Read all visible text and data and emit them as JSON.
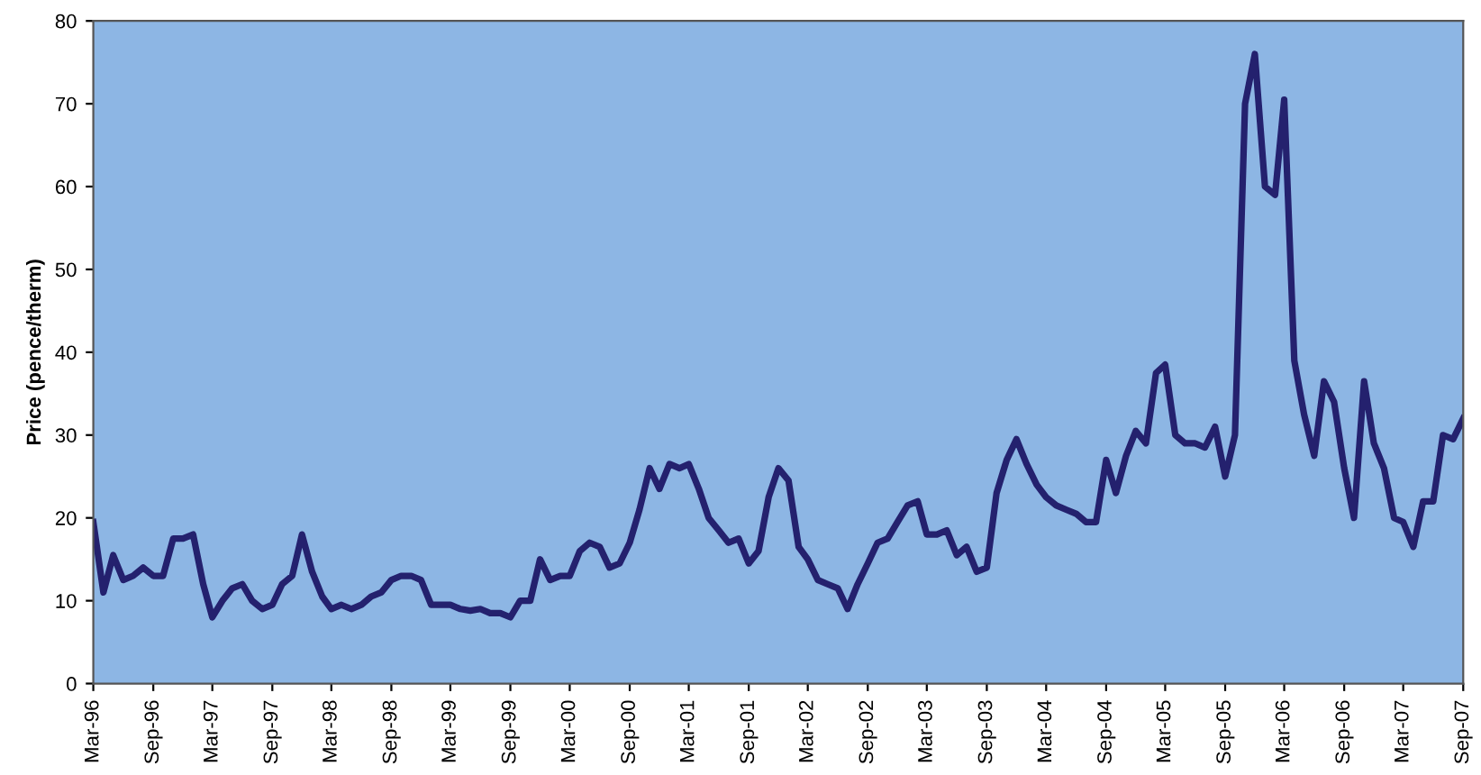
{
  "chart_data": {
    "type": "line",
    "ylabel": "Price (pence/therm)",
    "x": [
      "1996-03",
      "1996-04",
      "1996-05",
      "1996-06",
      "1996-07",
      "1996-08",
      "1996-09",
      "1996-10",
      "1996-11",
      "1996-12",
      "1997-01",
      "1997-02",
      "1997-03",
      "1997-04",
      "1997-05",
      "1997-06",
      "1997-07",
      "1997-08",
      "1997-09",
      "1997-10",
      "1997-11",
      "1997-12",
      "1998-01",
      "1998-02",
      "1998-03",
      "1998-04",
      "1998-05",
      "1998-06",
      "1998-07",
      "1998-08",
      "1998-09",
      "1998-10",
      "1998-11",
      "1998-12",
      "1999-01",
      "1999-02",
      "1999-03",
      "1999-04",
      "1999-05",
      "1999-06",
      "1999-07",
      "1999-08",
      "1999-09",
      "1999-10",
      "1999-11",
      "1999-12",
      "2000-01",
      "2000-02",
      "2000-03",
      "2000-04",
      "2000-05",
      "2000-06",
      "2000-07",
      "2000-08",
      "2000-09",
      "2000-10",
      "2000-11",
      "2000-12",
      "2001-01",
      "2001-02",
      "2001-03",
      "2001-04",
      "2001-05",
      "2001-06",
      "2001-07",
      "2001-08",
      "2001-09",
      "2001-10",
      "2001-11",
      "2001-12",
      "2002-01",
      "2002-02",
      "2002-03",
      "2002-04",
      "2002-05",
      "2002-06",
      "2002-07",
      "2002-08",
      "2002-09",
      "2002-10",
      "2002-11",
      "2002-12",
      "2003-01",
      "2003-02",
      "2003-03",
      "2003-04",
      "2003-05",
      "2003-06",
      "2003-07",
      "2003-08",
      "2003-09",
      "2003-10",
      "2003-11",
      "2003-12",
      "2004-01",
      "2004-02",
      "2004-03",
      "2004-04",
      "2004-05",
      "2004-06",
      "2004-07",
      "2004-08",
      "2004-09",
      "2004-10",
      "2004-11",
      "2004-12",
      "2005-01",
      "2005-02",
      "2005-03",
      "2005-04",
      "2005-05",
      "2005-06",
      "2005-07",
      "2005-08",
      "2005-09",
      "2005-10",
      "2005-11",
      "2005-12",
      "2006-01",
      "2006-02",
      "2006-03",
      "2006-04",
      "2006-05",
      "2006-06",
      "2006-07",
      "2006-08",
      "2006-09",
      "2006-10",
      "2006-11",
      "2006-12",
      "2007-01",
      "2007-02",
      "2007-03",
      "2007-04",
      "2007-05",
      "2007-06",
      "2007-07",
      "2007-08",
      "2007-09"
    ],
    "series": [
      {
        "color": "#24216e",
        "values": [
          19.5,
          11,
          15.5,
          12.5,
          13,
          14,
          13,
          13,
          17.5,
          17.5,
          18,
          12,
          8,
          10,
          11.5,
          12,
          10,
          9,
          9.5,
          12,
          13,
          18,
          13.5,
          10.5,
          9,
          9.5,
          9,
          9.5,
          10.5,
          11,
          12.5,
          13,
          13,
          12.5,
          9.5,
          9.5,
          9.5,
          9,
          8.8,
          9,
          8.5,
          8.5,
          8,
          10,
          10,
          15,
          12.5,
          13,
          13,
          16,
          17,
          16.5,
          14,
          14.5,
          17,
          21,
          26,
          23.5,
          26.5,
          26,
          26.5,
          23.5,
          20,
          18.5,
          17,
          17.5,
          14.5,
          16,
          22.5,
          26,
          24.5,
          16.5,
          15,
          12.5,
          12,
          11.5,
          9,
          12,
          14.5,
          17,
          17.5,
          19.5,
          21.5,
          22,
          18,
          18,
          18.5,
          15.5,
          16.5,
          13.5,
          14,
          23,
          27,
          29.5,
          26.5,
          24,
          22.5,
          21.5,
          21,
          20.5,
          19.5,
          19.5,
          27,
          23,
          27.5,
          30.5,
          29,
          37.5,
          38.5,
          30,
          29,
          29,
          28.5,
          31,
          25,
          30,
          70,
          76,
          60,
          59,
          70.5,
          39,
          32.5,
          27.5,
          36.5,
          34,
          26,
          20,
          36.5,
          29,
          26,
          20,
          19.5,
          16.5,
          22,
          22,
          30,
          29.5,
          32
        ]
      }
    ],
    "xlim": [
      "1996-03",
      "2007-09"
    ],
    "xticks": [
      {
        "value": "1996-03",
        "label": "Mar-96"
      },
      {
        "value": "1996-09",
        "label": "Sep-96"
      },
      {
        "value": "1997-03",
        "label": "Mar-97"
      },
      {
        "value": "1997-09",
        "label": "Sep-97"
      },
      {
        "value": "1998-03",
        "label": "Mar-98"
      },
      {
        "value": "1998-09",
        "label": "Sep-98"
      },
      {
        "value": "1999-03",
        "label": "Mar-99"
      },
      {
        "value": "1999-09",
        "label": "Sep-99"
      },
      {
        "value": "2000-03",
        "label": "Mar-00"
      },
      {
        "value": "2000-09",
        "label": "Sep-00"
      },
      {
        "value": "2001-03",
        "label": "Mar-01"
      },
      {
        "value": "2001-09",
        "label": "Sep-01"
      },
      {
        "value": "2002-03",
        "label": "Mar-02"
      },
      {
        "value": "2002-09",
        "label": "Sep-02"
      },
      {
        "value": "2003-03",
        "label": "Mar-03"
      },
      {
        "value": "2003-09",
        "label": "Sep-03"
      },
      {
        "value": "2004-03",
        "label": "Mar-04"
      },
      {
        "value": "2004-09",
        "label": "Sep-04"
      },
      {
        "value": "2005-03",
        "label": "Mar-05"
      },
      {
        "value": "2005-09",
        "label": "Sep-05"
      },
      {
        "value": "2006-03",
        "label": "Mar-06"
      },
      {
        "value": "2006-09",
        "label": "Sep-06"
      },
      {
        "value": "2007-03",
        "label": "Mar-07"
      },
      {
        "value": "2007-09",
        "label": "Sep-07"
      }
    ],
    "ylim": [
      0,
      80
    ],
    "yticks": [
      0,
      10,
      20,
      30,
      40,
      50,
      60,
      70,
      80
    ],
    "grid": false,
    "marker": "none",
    "line_style": "solid"
  }
}
